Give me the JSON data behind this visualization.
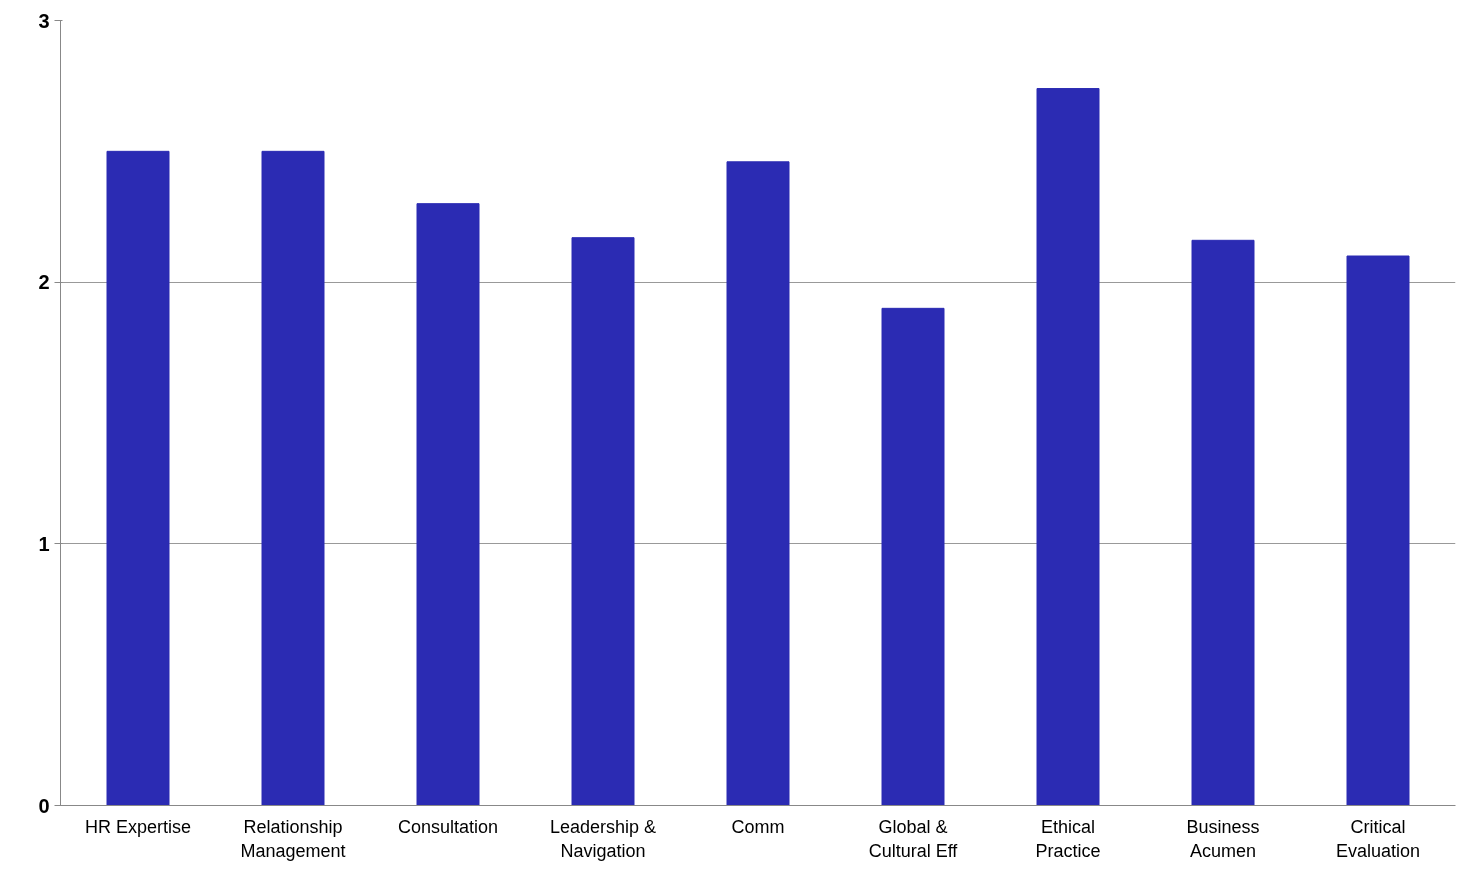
{
  "chart_data": {
    "type": "bar",
    "categories": [
      "HR Expertise",
      "Relationship Management",
      "Consultation",
      "Leadership & Navigation",
      "Comm",
      "Global & Cultural Eff",
      "Ethical Practice",
      "Business Acumen",
      "Critical Evaluation"
    ],
    "values": [
      2.5,
      2.5,
      2.3,
      2.17,
      2.46,
      1.9,
      2.74,
      2.16,
      2.1
    ],
    "color": "#2b2bb3",
    "ylim": [
      0,
      3
    ],
    "yticks": [
      0,
      1,
      2,
      3
    ],
    "grid": "y"
  }
}
